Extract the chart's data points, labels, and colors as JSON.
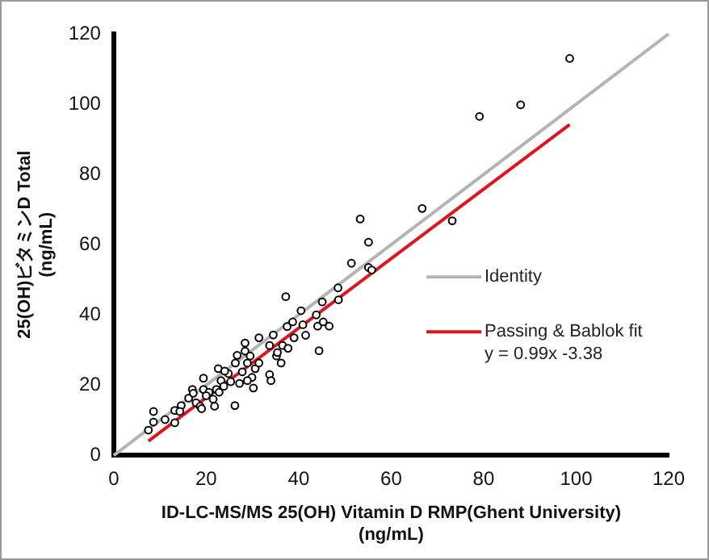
{
  "chart_data": {
    "type": "scatter",
    "xlabel": "ID-LC-MS/MS 25(OH) Vitamin D RMP(Ghent University)\n(ng/mL)",
    "ylabel": "25(OH)ビタミンD Total\n(ng/mL)",
    "xlim": [
      0,
      120
    ],
    "xticks": [
      0,
      20,
      40,
      60,
      80,
      100,
      120
    ],
    "ylim": [
      0,
      120
    ],
    "yticks": [
      0,
      20,
      40,
      60,
      80,
      100,
      120
    ],
    "grid": false,
    "legend": "right",
    "annotations": [
      "y = 0.99x -3.38"
    ],
    "series": [
      {
        "marker": "circle",
        "color": "#000000",
        "x": [
          7.5,
          8.6,
          8.6,
          11.1,
          13.2,
          13.2,
          14.6,
          14.3,
          16.2,
          17,
          17.2,
          17.8,
          18.7,
          19.4,
          19.4,
          19,
          20.6,
          21.5,
          21.8,
          22.2,
          22.6,
          23.2,
          23.8,
          24.8,
          25.3,
          26.2,
          26.3,
          27.2,
          27.8,
          28.4,
          28.4,
          28.9,
          29.5,
          29.9,
          30.2,
          30.6,
          31.4,
          33.7,
          33.7,
          34,
          34.5,
          35.2,
          36.2,
          36.5,
          37.2,
          37.5,
          37.7,
          38.7,
          40.5,
          40.9,
          41.5,
          43.8,
          44.1,
          44.4,
          45.1,
          45.3,
          46.6,
          48.5,
          48.6,
          51.4,
          53.3,
          55.1,
          55.1,
          55.8,
          66.7,
          73.2,
          79.1,
          88,
          98.6,
          20,
          24,
          26.7,
          28.9,
          31.4,
          35.4,
          39,
          22.8
        ],
        "values": [
          7.2,
          9.5,
          12.5,
          10.2,
          9.3,
          12.8,
          14.2,
          12.5,
          16.3,
          18.8,
          17.7,
          15,
          14,
          22,
          18.8,
          13.3,
          18,
          16,
          14,
          18.8,
          24.7,
          21.3,
          19.7,
          23.3,
          21,
          14.2,
          26.3,
          20.5,
          23.8,
          29.7,
          32,
          26.3,
          28.3,
          22.2,
          19.2,
          24.7,
          33.5,
          31.3,
          23,
          21.3,
          34.3,
          28.3,
          26.3,
          31.3,
          45.2,
          36.7,
          30.5,
          38,
          41.2,
          37.2,
          34.2,
          40,
          36.8,
          29.8,
          43.7,
          38,
          36.8,
          47.7,
          44.3,
          54.7,
          67.3,
          60.7,
          53.5,
          52.8,
          70.3,
          66.8,
          96.5,
          99.8,
          113,
          17,
          24,
          28.5,
          21.3,
          26.3,
          29.3,
          33.5,
          18
        ]
      },
      {
        "type": "line",
        "name": "Identity",
        "color": "#b4b4b4",
        "x": [
          0,
          120
        ],
        "values": [
          0,
          120
        ]
      },
      {
        "type": "line",
        "name": "Passing & Bablok fit",
        "color": "#e0141e",
        "x": [
          7.5,
          98.6
        ],
        "values": [
          4.1,
          94.2
        ]
      }
    ]
  }
}
